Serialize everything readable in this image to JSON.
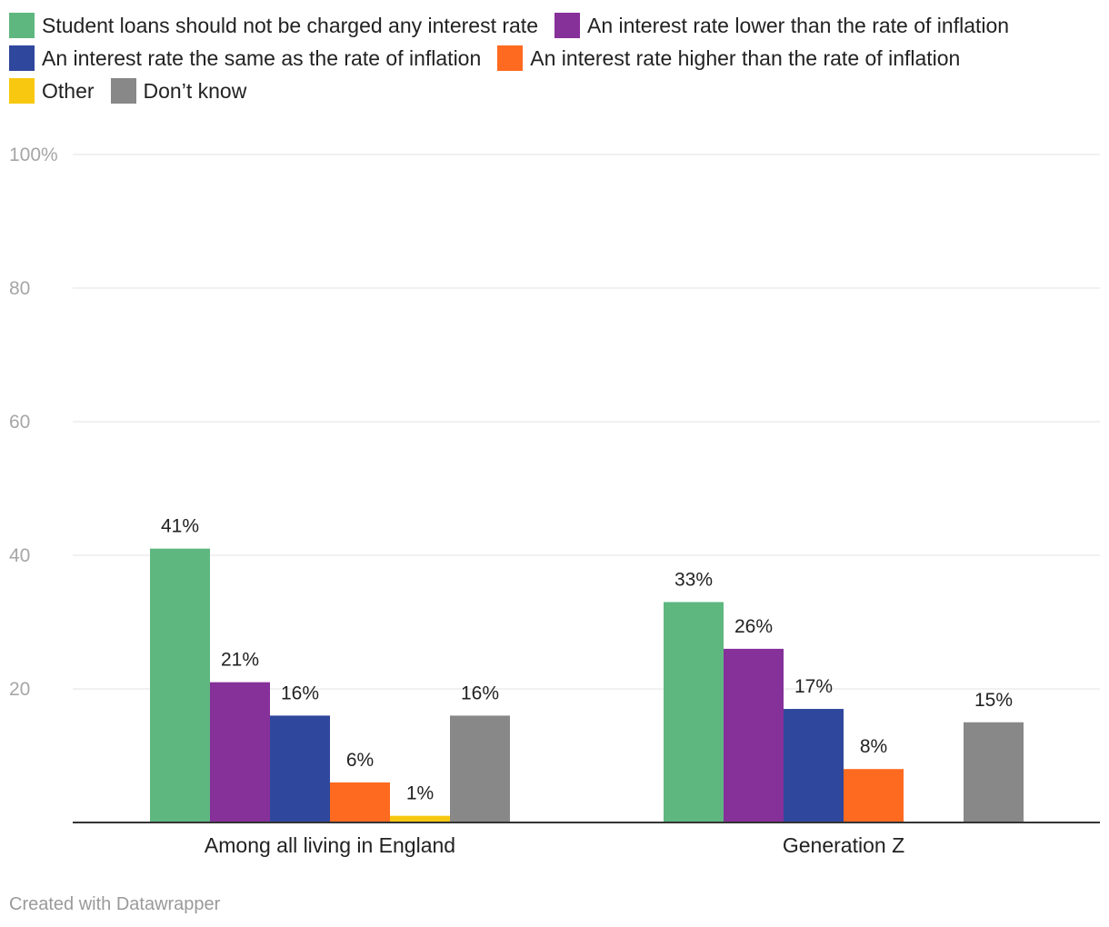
{
  "chart_data": {
    "type": "bar",
    "categories": [
      "Among all living in England",
      "Generation Z"
    ],
    "series": [
      {
        "name": "Student loans should not be charged any interest rate",
        "color": "#5fb780",
        "values": [
          41,
          33
        ],
        "labels": [
          "41%",
          "33%"
        ]
      },
      {
        "name": "An interest rate lower than the rate of inflation",
        "color": "#86309a",
        "values": [
          21,
          26
        ],
        "labels": [
          "21%",
          "26%"
        ]
      },
      {
        "name": "An interest rate the same as the rate of inflation",
        "color": "#2f479c",
        "values": [
          16,
          17
        ],
        "labels": [
          "16%",
          "17%"
        ]
      },
      {
        "name": "An interest rate higher than the rate of inflation",
        "color": "#fe6a20",
        "values": [
          6,
          8
        ],
        "labels": [
          "6%",
          "8%"
        ]
      },
      {
        "name": "Other",
        "color": "#f7c80f",
        "values": [
          1,
          0
        ],
        "labels": [
          "1%",
          ""
        ]
      },
      {
        "name": "Don’t know",
        "color": "#888888",
        "values": [
          16,
          15
        ],
        "labels": [
          "16%",
          "15%"
        ]
      }
    ],
    "ylim": [
      0,
      100
    ],
    "yticks": [
      20,
      40,
      60,
      80,
      100
    ],
    "ytick_labels": [
      "20",
      "40",
      "60",
      "80",
      "100%"
    ],
    "grid": true,
    "legend_position": "top-left"
  },
  "footer": "Created with Datawrapper"
}
